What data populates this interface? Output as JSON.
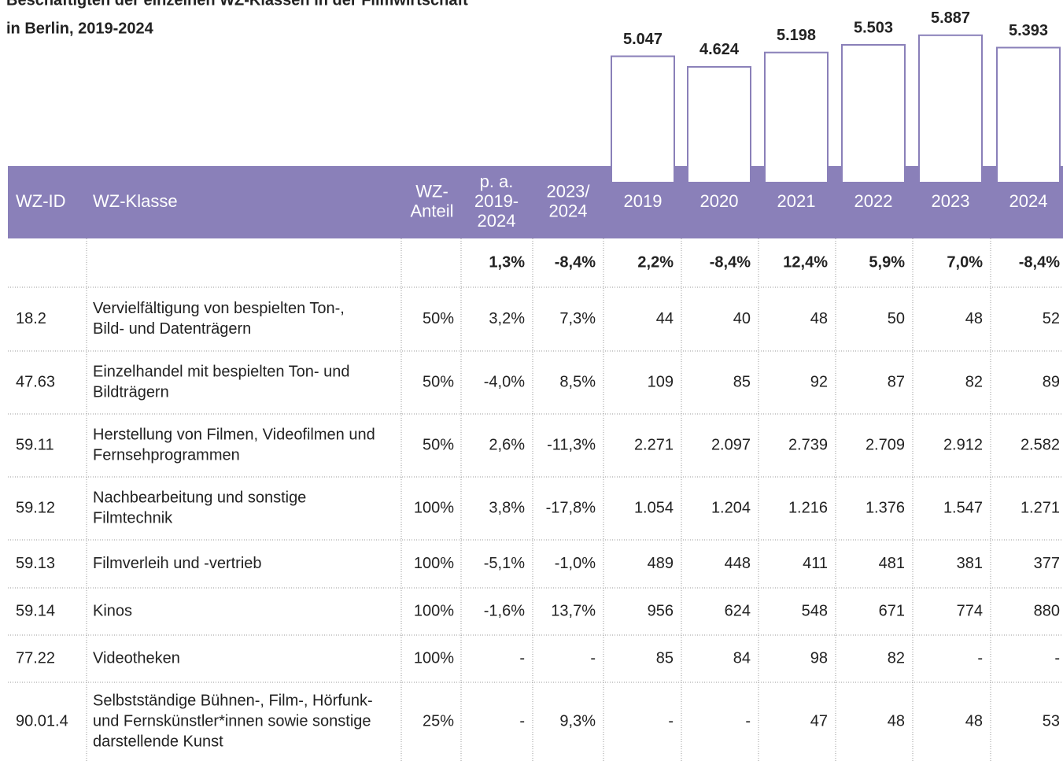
{
  "title": [
    "Beschäftigten der einzelnen WZ-Klassen in der Filmwirtschaft",
    "in Berlin, 2019-2024"
  ],
  "totals": {
    "values": [
      5047,
      4624,
      5198,
      5503,
      5887,
      5393
    ],
    "value_labels": [
      "5.047",
      "4.624",
      "5.198",
      "5.503",
      "5.887",
      "5.393"
    ]
  },
  "header": {
    "id": "WZ-ID",
    "klasse": "WZ-Klasse",
    "anteil": [
      "WZ-",
      "Anteil"
    ],
    "pa": [
      "p. a.",
      "2019-",
      "2024"
    ],
    "yoy": [
      "2023/",
      "2024"
    ],
    "years": [
      "2019",
      "2020",
      "2021",
      "2022",
      "2023",
      "2024"
    ]
  },
  "growth": {
    "pa": "1,3%",
    "yoy": "-8,4%",
    "years": [
      "2,2%",
      "-8,4%",
      "12,4%",
      "5,9%",
      "7,0%",
      "-8,4%"
    ]
  },
  "rows": [
    {
      "id": "18.2",
      "klasse": [
        "Vervielfältigung von bespielten Ton-,",
        "Bild- und Datenträgern"
      ],
      "anteil": "50%",
      "pa": "3,2%",
      "yoy": "7,3%",
      "years": [
        "44",
        "40",
        "48",
        "50",
        "48",
        "52"
      ]
    },
    {
      "id": "47.63",
      "klasse": [
        "Einzelhandel mit bespielten Ton- und",
        "Bildträgern"
      ],
      "anteil": "50%",
      "pa": "-4,0%",
      "yoy": "8,5%",
      "years": [
        "109",
        "85",
        "92",
        "87",
        "82",
        "89"
      ]
    },
    {
      "id": "59.11",
      "klasse": [
        "Herstellung von Filmen, Videofilmen und",
        "Fernsehprogrammen"
      ],
      "anteil": "50%",
      "pa": "2,6%",
      "yoy": "-11,3%",
      "years": [
        "2.271",
        "2.097",
        "2.739",
        "2.709",
        "2.912",
        "2.582"
      ]
    },
    {
      "id": "59.12",
      "klasse": [
        "Nachbearbeitung und sonstige",
        "Filmtechnik"
      ],
      "anteil": "100%",
      "pa": "3,8%",
      "yoy": "-17,8%",
      "years": [
        "1.054",
        "1.204",
        "1.216",
        "1.376",
        "1.547",
        "1.271"
      ]
    },
    {
      "id": "59.13",
      "klasse": [
        "Filmverleih und -vertrieb"
      ],
      "anteil": "100%",
      "pa": "-5,1%",
      "yoy": "-1,0%",
      "years": [
        "489",
        "448",
        "411",
        "481",
        "381",
        "377"
      ]
    },
    {
      "id": "59.14",
      "klasse": [
        "Kinos"
      ],
      "anteil": "100%",
      "pa": "-1,6%",
      "yoy": "13,7%",
      "years": [
        "956",
        "624",
        "548",
        "671",
        "774",
        "880"
      ]
    },
    {
      "id": "77.22",
      "klasse": [
        "Videotheken"
      ],
      "anteil": "100%",
      "pa": "-",
      "yoy": "-",
      "years": [
        "85",
        "84",
        "98",
        "82",
        "-",
        "-"
      ]
    },
    {
      "id": "90.01.4",
      "klasse": [
        "Selbstständige Bühnen-, Film-, Hörfunk-",
        "und Fernskünstler*innen sowie sonstige",
        "darstellende Kunst"
      ],
      "anteil": "25%",
      "pa": "-",
      "yoy": "9,3%",
      "years": [
        "-",
        "-",
        "47",
        "48",
        "48",
        "53"
      ]
    }
  ]
}
